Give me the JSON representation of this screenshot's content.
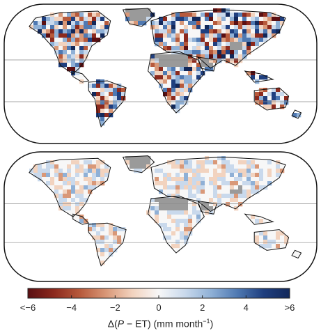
{
  "colorbar": {
    "ticks": [
      "<−6",
      "−4",
      "−2",
      "0",
      "2",
      "4",
      ">6"
    ],
    "label_prefix": "Δ(",
    "label_var": "P",
    "label_mid": " − ET) (mm month",
    "label_exp": "−1",
    "label_suffix": ")",
    "colors": [
      "#5a0f12",
      "#8c2a1e",
      "#b75a3c",
      "#d99878",
      "#f2d3bf",
      "#f7f7f7",
      "#c9d9ec",
      "#8fb0d6",
      "#4f79b2",
      "#1f3f7f",
      "#12285a"
    ]
  },
  "maps": [
    {
      "name": "top",
      "intensity": 1.0,
      "seed": 7
    },
    {
      "name": "bottom",
      "intensity": 0.35,
      "seed": 19
    }
  ],
  "colors": {
    "no_data": "#9a9a9a",
    "coast": "#111111",
    "frame": "#111111"
  }
}
